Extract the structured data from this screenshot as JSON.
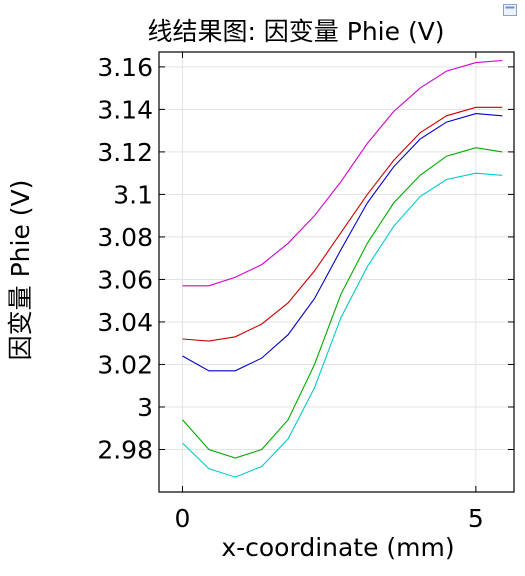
{
  "chart_data": {
    "type": "line",
    "title": "线结果图: 因变量 Phie (V)",
    "xlabel": "x-coordinate (mm)",
    "ylabel": "因变量 Phie (V)",
    "xlim": [
      -0.4,
      5.65
    ],
    "ylim": [
      2.96,
      3.167
    ],
    "xticks": [
      0,
      5
    ],
    "xtick_labels": [
      "0",
      "5"
    ],
    "yticks": [
      2.98,
      3.0,
      3.02,
      3.04,
      3.06,
      3.08,
      3.1,
      3.12,
      3.14,
      3.16
    ],
    "ytick_labels": [
      "2.98",
      "3",
      "3.02",
      "3.04",
      "3.06",
      "3.08",
      "3.1",
      "3.12",
      "3.14",
      "3.16"
    ],
    "grid": true,
    "x": [
      0,
      0.45,
      0.9,
      1.35,
      1.8,
      2.25,
      2.7,
      3.15,
      3.6,
      4.05,
      4.5,
      5.0,
      5.45
    ],
    "series": [
      {
        "color": "#cc00cc",
        "values": [
          3.057,
          3.057,
          3.061,
          3.067,
          3.077,
          3.09,
          3.106,
          3.124,
          3.139,
          3.15,
          3.158,
          3.162,
          3.163
        ]
      },
      {
        "color": "#cc0000",
        "values": [
          3.032,
          3.031,
          3.033,
          3.039,
          3.049,
          3.064,
          3.082,
          3.1,
          3.116,
          3.129,
          3.137,
          3.141,
          3.141
        ]
      },
      {
        "color": "#0000cc",
        "values": [
          3.024,
          3.017,
          3.017,
          3.023,
          3.034,
          3.051,
          3.074,
          3.096,
          3.113,
          3.126,
          3.134,
          3.138,
          3.137
        ]
      },
      {
        "color": "#00aa00",
        "values": [
          2.994,
          2.98,
          2.976,
          2.98,
          2.994,
          3.02,
          3.053,
          3.077,
          3.096,
          3.109,
          3.118,
          3.122,
          3.12
        ]
      },
      {
        "color": "#00cccc",
        "values": [
          2.983,
          2.971,
          2.967,
          2.972,
          2.985,
          3.009,
          3.042,
          3.066,
          3.085,
          3.099,
          3.107,
          3.11,
          3.109
        ]
      }
    ]
  }
}
